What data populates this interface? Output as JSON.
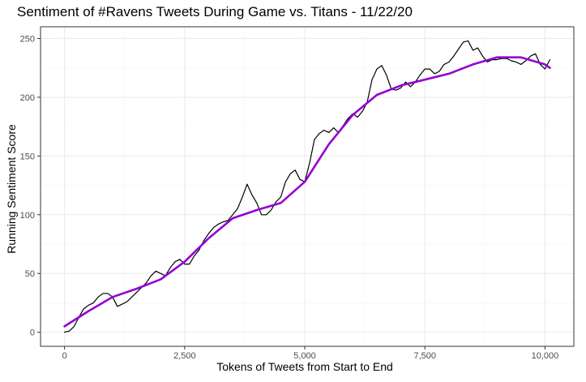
{
  "colors": {
    "raw_line": "#000000",
    "smooth_line": "#9400D3",
    "grid_major": "#ebebeb",
    "grid_minor": "#f5f5f5",
    "panel_border": "#333333",
    "background": "#ffffff"
  },
  "chart_data": {
    "type": "line",
    "title": "Sentiment of #Ravens Tweets During Game vs. Titans - 11/22/20",
    "xlabel": "Tokens of Tweets from Start to End",
    "ylabel": "Running Sentiment Score",
    "xlim": [
      -500,
      10600
    ],
    "ylim": [
      -12,
      260
    ],
    "x_ticks": [
      0,
      2500,
      5000,
      7500,
      10000
    ],
    "x_tick_labels": [
      "0",
      "2,500",
      "5,000",
      "7,500",
      "10,000"
    ],
    "y_ticks": [
      0,
      50,
      100,
      150,
      200,
      250
    ],
    "y_tick_labels": [
      "0",
      "50",
      "100",
      "150",
      "200",
      "250"
    ],
    "grid": true,
    "legend": "none",
    "series": [
      {
        "role": "raw",
        "x": [
          0,
          100,
          200,
          300,
          400,
          500,
          600,
          700,
          800,
          900,
          1000,
          1100,
          1200,
          1300,
          1400,
          1500,
          1600,
          1700,
          1800,
          1900,
          2000,
          2100,
          2200,
          2300,
          2400,
          2500,
          2600,
          2700,
          2800,
          2900,
          3000,
          3100,
          3200,
          3300,
          3400,
          3500,
          3600,
          3700,
          3800,
          3900,
          4000,
          4100,
          4200,
          4300,
          4400,
          4500,
          4600,
          4700,
          4800,
          4900,
          5000,
          5100,
          5200,
          5300,
          5400,
          5500,
          5600,
          5700,
          5800,
          5900,
          6000,
          6100,
          6200,
          6300,
          6400,
          6500,
          6600,
          6700,
          6800,
          6900,
          7000,
          7100,
          7200,
          7300,
          7400,
          7500,
          7600,
          7700,
          7800,
          7900,
          8000,
          8100,
          8200,
          8300,
          8400,
          8500,
          8600,
          8700,
          8800,
          8900,
          9000,
          9100,
          9200,
          9300,
          9400,
          9500,
          9600,
          9700,
          9800,
          9900,
          10000,
          10100
        ],
        "y": [
          0,
          1,
          5,
          13,
          20,
          23,
          25,
          30,
          33,
          33,
          30,
          22,
          24,
          26,
          30,
          34,
          38,
          42,
          48,
          52,
          50,
          48,
          55,
          60,
          62,
          58,
          58,
          65,
          70,
          78,
          84,
          89,
          92,
          94,
          95,
          100,
          105,
          115,
          126,
          117,
          110,
          100,
          100,
          104,
          111,
          115,
          128,
          135,
          138,
          130,
          128,
          144,
          164,
          169,
          172,
          170,
          174,
          170,
          176,
          182,
          186,
          183,
          188,
          196,
          215,
          224,
          227,
          219,
          207,
          206,
          208,
          213,
          209,
          213,
          219,
          224,
          224,
          220,
          222,
          228,
          230,
          235,
          241,
          247,
          248,
          240,
          242,
          235,
          230,
          232,
          232,
          233,
          233,
          231,
          230,
          228,
          231,
          235,
          237,
          228,
          224,
          232
        ]
      },
      {
        "role": "smooth",
        "x": [
          0,
          500,
          1000,
          1500,
          2000,
          2500,
          3000,
          3500,
          4000,
          4500,
          5000,
          5500,
          6000,
          6500,
          7000,
          7500,
          8000,
          8500,
          9000,
          9500,
          10000,
          10100
        ],
        "y": [
          5,
          18,
          30,
          37,
          45,
          60,
          80,
          97,
          104,
          110,
          128,
          160,
          185,
          202,
          210,
          215,
          220,
          228,
          234,
          234,
          228,
          225
        ]
      }
    ]
  }
}
